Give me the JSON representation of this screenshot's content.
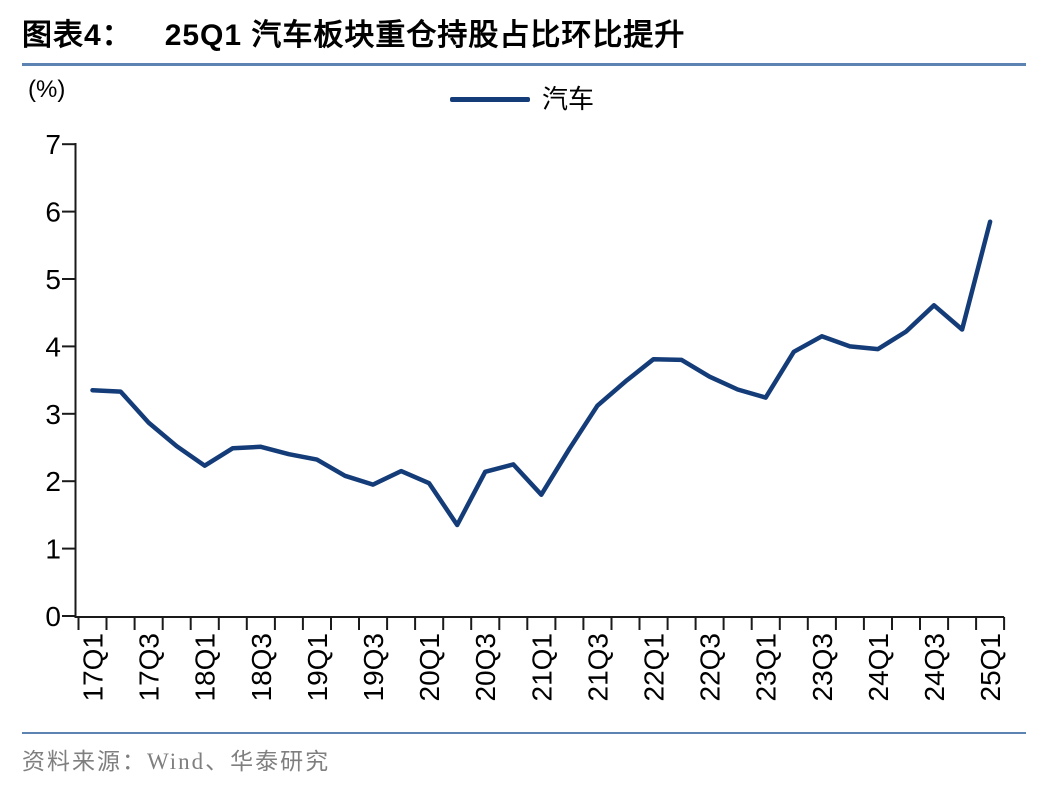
{
  "figure": {
    "label": "图表4：",
    "title": "25Q1 汽车板块重仓持股占比环比提升",
    "unit_label": "(%)",
    "source": "资料来源：Wind、华泰研究"
  },
  "legend": {
    "series_label": "汽车"
  },
  "colors": {
    "line": "#143c78",
    "divider": "#5d83b2",
    "axis": "#1a1a1a",
    "text": "#000000",
    "source_text": "#7f7f7f"
  },
  "chart_data": {
    "type": "line",
    "title": "25Q1 汽车板块重仓持股占比环比提升",
    "ylabel": "(%)",
    "xlabel": "",
    "ylim": [
      0,
      7
    ],
    "yticks": [
      0,
      1,
      2,
      3,
      4,
      5,
      6,
      7
    ],
    "grid": false,
    "legend_position": "top-center",
    "x_label_every": 2,
    "x_label_rotation": -90,
    "categories": [
      "17Q1",
      "17Q2",
      "17Q3",
      "17Q4",
      "18Q1",
      "18Q2",
      "18Q3",
      "18Q4",
      "19Q1",
      "19Q2",
      "19Q3",
      "19Q4",
      "20Q1",
      "20Q2",
      "20Q3",
      "20Q4",
      "21Q1",
      "21Q2",
      "21Q3",
      "21Q4",
      "22Q1",
      "22Q2",
      "22Q3",
      "22Q4",
      "23Q1",
      "23Q2",
      "23Q3",
      "23Q4",
      "24Q1",
      "24Q2",
      "24Q3",
      "24Q4",
      "25Q1"
    ],
    "shown_x_labels": [
      "17Q1",
      "17Q3",
      "18Q1",
      "18Q3",
      "19Q1",
      "19Q3",
      "20Q1",
      "20Q3",
      "21Q1",
      "21Q3",
      "22Q1",
      "22Q3",
      "23Q1",
      "23Q3",
      "24Q1",
      "24Q3",
      "25Q1"
    ],
    "series": [
      {
        "name": "汽车",
        "values": [
          3.35,
          3.33,
          2.87,
          2.52,
          2.23,
          2.49,
          2.51,
          2.4,
          2.32,
          2.08,
          1.95,
          2.15,
          1.97,
          1.35,
          2.14,
          2.25,
          1.8,
          2.48,
          3.12,
          3.48,
          3.81,
          3.8,
          3.55,
          3.36,
          3.24,
          3.92,
          4.15,
          4.0,
          3.96,
          4.22,
          4.61,
          4.25,
          5.85
        ]
      }
    ]
  }
}
